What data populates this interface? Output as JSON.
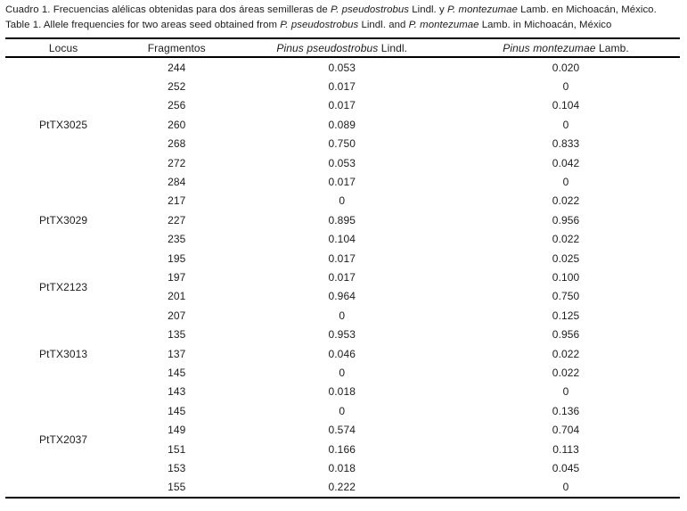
{
  "colors": {
    "background": "#ffffff",
    "text": "#1c1c1c",
    "rule": "#000000"
  },
  "caption": {
    "spanish_parts": [
      {
        "text": "Cuadro 1. Frecuencias alélicas obtenidas para dos áreas semilleras de ",
        "italic": false
      },
      {
        "text": "P. pseudostrobus",
        "italic": true
      },
      {
        "text": " Lindl. y ",
        "italic": false
      },
      {
        "text": "P. montezumae",
        "italic": true
      },
      {
        "text": " Lamb. en Michoacán, México.",
        "italic": false
      }
    ],
    "english_parts": [
      {
        "text": "Table 1. Allele frequencies for two areas seed obtained from ",
        "italic": false
      },
      {
        "text": "P. pseudostrobus",
        "italic": true
      },
      {
        "text": " Lindl. and ",
        "italic": false
      },
      {
        "text": "P. montezumae",
        "italic": true
      },
      {
        "text": " Lamb. in Michoacán, México",
        "italic": false
      }
    ]
  },
  "table": {
    "headers": [
      {
        "name": "locus",
        "parts": [
          {
            "text": "Locus",
            "italic": false
          }
        ]
      },
      {
        "name": "fragmentos",
        "parts": [
          {
            "text": "Fragmentos",
            "italic": false
          }
        ]
      },
      {
        "name": "pseudostrobus",
        "parts": [
          {
            "text": "Pinus pseudostrobus",
            "italic": true
          },
          {
            "text": " Lindl.",
            "italic": false
          }
        ]
      },
      {
        "name": "montezumae",
        "parts": [
          {
            "text": "Pinus montezumae",
            "italic": true
          },
          {
            "text": " Lamb.",
            "italic": false
          }
        ]
      }
    ],
    "groups": [
      {
        "locus": "PtTX3025",
        "rows": [
          {
            "fragment": "244",
            "pseudostrobus": "0.053",
            "montezumae": "0.020"
          },
          {
            "fragment": "252",
            "pseudostrobus": "0.017",
            "montezumae": "0"
          },
          {
            "fragment": "256",
            "pseudostrobus": "0.017",
            "montezumae": "0.104"
          },
          {
            "fragment": "260",
            "pseudostrobus": "0.089",
            "montezumae": "0"
          },
          {
            "fragment": "268",
            "pseudostrobus": "0.750",
            "montezumae": "0.833"
          },
          {
            "fragment": "272",
            "pseudostrobus": "0.053",
            "montezumae": "0.042"
          },
          {
            "fragment": "284",
            "pseudostrobus": "0.017",
            "montezumae": "0"
          }
        ]
      },
      {
        "locus": "PtTX3029",
        "rows": [
          {
            "fragment": "217",
            "pseudostrobus": "0",
            "montezumae": "0.022"
          },
          {
            "fragment": "227",
            "pseudostrobus": "0.895",
            "montezumae": "0.956"
          },
          {
            "fragment": "235",
            "pseudostrobus": "0.104",
            "montezumae": "0.022"
          }
        ]
      },
      {
        "locus": "PtTX2123",
        "rows": [
          {
            "fragment": "195",
            "pseudostrobus": "0.017",
            "montezumae": "0.025"
          },
          {
            "fragment": "197",
            "pseudostrobus": "0.017",
            "montezumae": "0.100"
          },
          {
            "fragment": "201",
            "pseudostrobus": "0.964",
            "montezumae": "0.750"
          },
          {
            "fragment": "207",
            "pseudostrobus": "0",
            "montezumae": "0.125"
          }
        ]
      },
      {
        "locus": "PtTX3013",
        "rows": [
          {
            "fragment": "135",
            "pseudostrobus": "0.953",
            "montezumae": "0.956"
          },
          {
            "fragment": "137",
            "pseudostrobus": "0.046",
            "montezumae": "0.022"
          },
          {
            "fragment": "145",
            "pseudostrobus": "0",
            "montezumae": "0.022"
          }
        ]
      },
      {
        "locus": "PtTX2037",
        "rows": [
          {
            "fragment": "143",
            "pseudostrobus": "0.018",
            "montezumae": "0"
          },
          {
            "fragment": "145",
            "pseudostrobus": "0",
            "montezumae": "0.136"
          },
          {
            "fragment": "149",
            "pseudostrobus": "0.574",
            "montezumae": "0.704"
          },
          {
            "fragment": "151",
            "pseudostrobus": "0.166",
            "montezumae": "0.113"
          },
          {
            "fragment": "153",
            "pseudostrobus": "0.018",
            "montezumae": "0.045"
          },
          {
            "fragment": "155",
            "pseudostrobus": "0.222",
            "montezumae": "0"
          }
        ]
      }
    ]
  }
}
